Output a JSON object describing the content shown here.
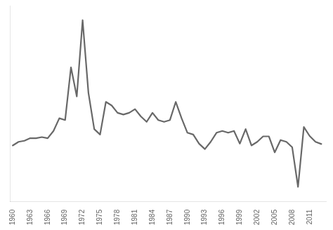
{
  "chart_data": {
    "type": "line",
    "x": [
      1960,
      1961,
      1962,
      1963,
      1964,
      1965,
      1966,
      1967,
      1968,
      1969,
      1970,
      1971,
      1972,
      1973,
      1974,
      1975,
      1976,
      1977,
      1978,
      1979,
      1980,
      1981,
      1982,
      1983,
      1984,
      1985,
      1986,
      1987,
      1988,
      1989,
      1990,
      1991,
      1992,
      1993,
      1994,
      1995,
      1996,
      1997,
      1998,
      1999,
      2000,
      2001,
      2002,
      2003,
      2004,
      2005,
      2006,
      2007,
      2008,
      2009,
      2010,
      2011,
      2012,
      2013
    ],
    "values": [
      3.5,
      4.5,
      4.8,
      5.5,
      5.5,
      5.8,
      5.5,
      7.5,
      11.0,
      10.5,
      25.0,
      17.0,
      38.0,
      18.0,
      8.0,
      6.5,
      15.5,
      14.5,
      12.5,
      12.0,
      12.5,
      13.5,
      11.5,
      10.0,
      12.5,
      10.5,
      10.0,
      10.5,
      15.5,
      11.0,
      7.0,
      6.5,
      4.0,
      2.5,
      4.5,
      7.0,
      7.5,
      7.0,
      7.5,
      4.0,
      8.0,
      3.5,
      4.5,
      6.0,
      6.0,
      1.6,
      5.0,
      4.5,
      3.0,
      -7.9,
      8.6,
      6.1,
      4.5,
      3.9
    ],
    "color": "#686868",
    "xlim": [
      1959.5,
      2013.8
    ],
    "xticks": [
      1960,
      1963,
      1966,
      1969,
      1972,
      1975,
      1978,
      1981,
      1984,
      1987,
      1990,
      1993,
      1996,
      1999,
      2002,
      2005,
      2008,
      2011
    ],
    "ylim": [
      -12,
      42
    ],
    "yticks": [],
    "grid": false,
    "tick_labels": "x"
  }
}
